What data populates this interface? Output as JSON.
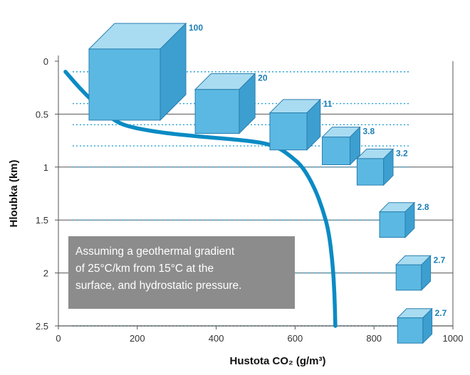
{
  "chart_data": {
    "type": "line",
    "ylabel": "Hloubka (km)",
    "xlabel": "Hustota CO₂ (g/m³)",
    "xlim": [
      0,
      1000
    ],
    "ylim": [
      0,
      2.5
    ],
    "y_inverted": true,
    "x_ticks": [
      "0",
      "200",
      "400",
      "600",
      "800",
      "1000"
    ],
    "y_ticks": [
      "0",
      "0.5",
      "1",
      "1.5",
      "2",
      "2.5"
    ],
    "grid": "horizontal",
    "series": [
      {
        "x": [
          18,
          60,
          110,
          145,
          180,
          250,
          350,
          450,
          520,
          560,
          590,
          620,
          650,
          670,
          685,
          695,
          700,
          702
        ],
        "y": [
          0.1,
          0.28,
          0.46,
          0.57,
          0.62,
          0.67,
          0.71,
          0.74,
          0.77,
          0.82,
          0.9,
          1.0,
          1.2,
          1.4,
          1.6,
          1.9,
          2.2,
          2.5
        ]
      }
    ],
    "volumes": [
      {
        "label": "100",
        "depth": 0.1
      },
      {
        "label": "20",
        "depth": 0.4
      },
      {
        "label": "11",
        "depth": 0.6
      },
      {
        "label": "3.8",
        "depth": 0.8
      },
      {
        "label": "3.2",
        "depth": 1.0
      },
      {
        "label": "2.8",
        "depth": 1.5
      },
      {
        "label": "2.7",
        "depth": 2.0
      },
      {
        "label": "2.7",
        "depth": 2.5
      }
    ],
    "annotation": [
      "Assuming a geothermal gradient",
      "of 25°C/km from 15°C at the",
      "surface, and hydrostatic pressure."
    ]
  },
  "colors": {
    "curve": "#0b8bc4",
    "cube_front": "#5bb8e2",
    "cube_top": "#a9dcf1",
    "cube_side": "#3d9fcf",
    "cube_edge": "#2a7fb0",
    "label": "#1a7fb5",
    "dotted": "#29a3d6",
    "grid": "#555555",
    "box": "#8c8c8c"
  }
}
